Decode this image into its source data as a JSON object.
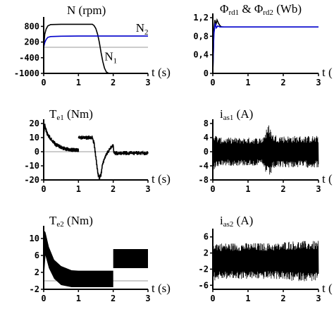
{
  "chart_data": [
    {
      "id": "speed",
      "type": "line",
      "title": "N (rpm)",
      "xlabel": "t (s)",
      "xlim": [
        0,
        3
      ],
      "ylim": [
        -1000,
        1000
      ],
      "xticks": [
        0,
        1,
        2,
        3
      ],
      "yticks": [
        -1000,
        -400,
        200,
        800
      ],
      "ytick_labels": [
        "-1000",
        "-400",
        "200",
        "800"
      ],
      "zero_line": true,
      "series": [
        {
          "name": "N1",
          "color": "#000000",
          "points": [
            [
              0,
              0
            ],
            [
              0.03,
              500
            ],
            [
              0.07,
              700
            ],
            [
              0.12,
              820
            ],
            [
              0.2,
              870
            ],
            [
              0.5,
              880
            ],
            [
              1.4,
              880
            ],
            [
              1.45,
              830
            ],
            [
              1.5,
              720
            ],
            [
              1.55,
              500
            ],
            [
              1.6,
              200
            ],
            [
              1.65,
              -200
            ],
            [
              1.7,
              -550
            ],
            [
              1.75,
              -800
            ],
            [
              1.8,
              -940
            ],
            [
              1.85,
              -985
            ],
            [
              1.9,
              -1000
            ],
            [
              2.1,
              -1000
            ]
          ],
          "tail": [
            [
              2.4,
              -1000
            ],
            [
              2.55,
              -1000
            ]
          ]
        },
        {
          "name": "N2",
          "color": "#0000cc",
          "points": [
            [
              0,
              0
            ],
            [
              0.03,
              180
            ],
            [
              0.07,
              300
            ],
            [
              0.12,
              380
            ],
            [
              0.2,
              410
            ],
            [
              0.5,
              425
            ],
            [
              1.0,
              430
            ],
            [
              1.5,
              430
            ],
            [
              2.0,
              430
            ],
            [
              3,
              430
            ]
          ]
        }
      ],
      "annotations": [
        {
          "text": "N",
          "sub": "2",
          "x": 2.65,
          "y": 590
        },
        {
          "text": "N",
          "sub": "1",
          "x": 1.75,
          "y": -500
        }
      ]
    },
    {
      "id": "flux",
      "type": "line",
      "title": "Φrd1 & Φrd2 (Wb)",
      "title_parts": [
        {
          "t": "Φ"
        },
        {
          "t": "rd1",
          "sub": true
        },
        {
          "t": " & Φ"
        },
        {
          "t": "rd2",
          "sub": true
        },
        {
          "t": " (Wb)"
        }
      ],
      "xlabel": "t (",
      "xlim": [
        0,
        3
      ],
      "ylim": [
        0,
        1.2
      ],
      "xticks": [
        0,
        1,
        2,
        3
      ],
      "yticks": [
        0,
        0.4,
        0.8,
        1.2
      ],
      "ytick_labels": [
        "0",
        "0,4",
        "0,8",
        "1,2"
      ],
      "series": [
        {
          "name": "",
          "color": "#000000",
          "points": [
            [
              0,
              0
            ],
            [
              0.03,
              0.9
            ],
            [
              0.06,
              1.15
            ],
            [
              0.09,
              1.05
            ],
            [
              0.12,
              1.15
            ],
            [
              0.16,
              1.08
            ],
            [
              0.2,
              1.03
            ],
            [
              0.25,
              1.0
            ],
            [
              0.3,
              1.0
            ]
          ]
        },
        {
          "name": "",
          "color": "#0000cc",
          "points": [
            [
              0,
              0
            ],
            [
              0.03,
              0.85
            ],
            [
              0.07,
              1.08
            ],
            [
              0.1,
              0.98
            ],
            [
              0.14,
              1.02
            ],
            [
              0.2,
              1.0
            ],
            [
              3,
              1.0
            ]
          ]
        }
      ]
    },
    {
      "id": "te1",
      "type": "line",
      "title": "Te1 (Nm)",
      "title_parts": [
        {
          "t": "T"
        },
        {
          "t": "e1",
          "sub": true
        },
        {
          "t": " (Nm)"
        }
      ],
      "xlabel": "t (s)",
      "xlim": [
        0,
        3
      ],
      "ylim": [
        -20,
        20
      ],
      "xticks": [
        0,
        1,
        2,
        3
      ],
      "yticks": [
        -20,
        -10,
        0,
        10,
        20
      ],
      "ytick_labels": [
        "-20",
        "-10",
        "0",
        "10",
        "20"
      ],
      "zero_line": true,
      "series": [
        {
          "name": "",
          "color": "#000000",
          "points": [
            [
              0,
              12
            ],
            [
              0.03,
              19
            ],
            [
              0.06,
              16
            ],
            [
              0.1,
              13
            ],
            [
              0.2,
              9
            ],
            [
              0.35,
              5
            ],
            [
              0.5,
              3
            ],
            [
              0.7,
              1.5
            ],
            [
              1.0,
              1
            ]
          ],
          "noise": 1.5
        },
        {
          "name": "",
          "color": "#000000",
          "points": [
            [
              1.0,
              10
            ],
            [
              1.4,
              10
            ],
            [
              1.45,
              6
            ],
            [
              1.5,
              -4
            ],
            [
              1.55,
              -14
            ],
            [
              1.6,
              -19
            ],
            [
              1.65,
              -16
            ],
            [
              1.7,
              -8
            ],
            [
              1.8,
              -2
            ],
            [
              1.9,
              2
            ],
            [
              2.0,
              5
            ],
            [
              2.02,
              -1
            ],
            [
              3.0,
              -1
            ]
          ],
          "noise": 1.5
        }
      ]
    },
    {
      "id": "ias1",
      "type": "line",
      "title": "ias1 (A)",
      "title_parts": [
        {
          "t": "i"
        },
        {
          "t": "as1",
          "sub": true
        },
        {
          "t": " (A)"
        }
      ],
      "xlabel": "t (",
      "xlim": [
        0,
        3
      ],
      "ylim": [
        -8,
        8
      ],
      "xticks": [
        0,
        1,
        2,
        3
      ],
      "yticks": [
        -8,
        -4,
        0,
        4,
        8
      ],
      "ytick_labels": [
        "-8",
        "-4",
        "0",
        "4",
        "8"
      ],
      "envelope": [
        [
          0,
          7
        ],
        [
          0.05,
          5
        ],
        [
          0.2,
          4
        ],
        [
          1.4,
          4
        ],
        [
          1.5,
          6
        ],
        [
          1.6,
          8
        ],
        [
          1.7,
          5
        ],
        [
          2.0,
          4.5
        ],
        [
          3,
          4.5
        ]
      ],
      "series": []
    },
    {
      "id": "te2",
      "type": "line",
      "title": "Te2 (Nm)",
      "title_parts": [
        {
          "t": "T"
        },
        {
          "t": "e2",
          "sub": true
        },
        {
          "t": " (Nm)"
        }
      ],
      "xlabel": "t (s)",
      "xlim": [
        0,
        3
      ],
      "ylim": [
        -2,
        12
      ],
      "xticks": [
        0,
        1,
        2,
        3
      ],
      "yticks": [
        -2,
        2,
        6,
        10
      ],
      "ytick_labels": [
        "-2",
        "2",
        "6",
        "10"
      ],
      "zero_line": true,
      "bands": [
        {
          "x": [
            0,
            0.05,
            0.15,
            0.3,
            0.5,
            0.8,
            1.0,
            2.0
          ],
          "hi": [
            12,
            11.5,
            8,
            5,
            3.5,
            2.5,
            2.4,
            2.4
          ],
          "lo": [
            0,
            6,
            3,
            0.5,
            -1,
            -1.5,
            -1.5,
            -1.5
          ]
        },
        {
          "x": [
            2.0,
            2.01,
            3.0
          ],
          "hi": [
            7.5,
            7.5,
            7.5
          ],
          "lo": [
            3,
            3,
            3
          ]
        }
      ],
      "series": []
    },
    {
      "id": "ias2",
      "type": "line",
      "title": "ias2 (A)",
      "title_parts": [
        {
          "t": "i"
        },
        {
          "t": "as2",
          "sub": true
        },
        {
          "t": " (A)"
        }
      ],
      "xlabel": "t (",
      "xlim": [
        0,
        3
      ],
      "ylim": [
        -7,
        7
      ],
      "xticks": [
        0,
        1,
        2,
        3
      ],
      "yticks": [
        -6,
        -2,
        2,
        6
      ],
      "ytick_labels": [
        "-6",
        "-2",
        "2",
        "6"
      ],
      "envelope": [
        [
          0,
          5
        ],
        [
          0.2,
          4.5
        ],
        [
          2.0,
          4.5
        ],
        [
          2.05,
          5
        ],
        [
          3,
          5
        ]
      ],
      "series": []
    }
  ]
}
